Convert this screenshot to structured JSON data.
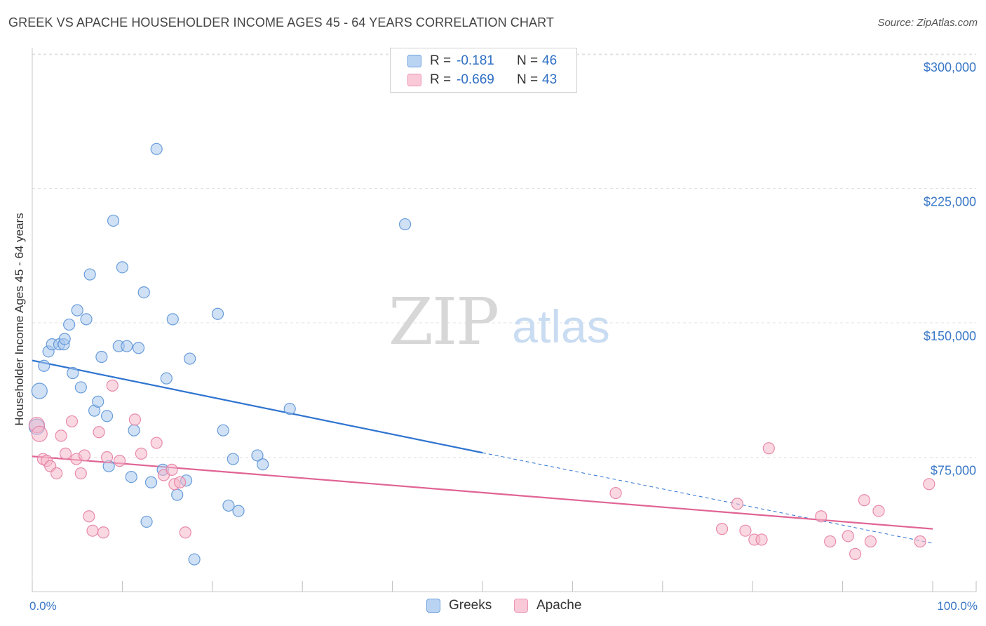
{
  "title": "GREEK VS APACHE HOUSEHOLDER INCOME AGES 45 - 64 YEARS CORRELATION CHART",
  "source": "Source: ZipAtlas.com",
  "watermark": {
    "zip": "ZIP",
    "atlas": "atlas"
  },
  "legend": {
    "greeks": {
      "r_label": "R =",
      "r_value": "-0.181",
      "n_label": "N =",
      "n_value": "46"
    },
    "apache": {
      "r_label": "R =",
      "r_value": "-0.669",
      "n_label": "N =",
      "n_value": "43"
    }
  },
  "bottom_legend": {
    "greeks": "Greeks",
    "apache": "Apache"
  },
  "colors": {
    "greeks_fill": "#a9c9ef",
    "greeks_stroke": "#5b93d6",
    "greeks_line": "#2f74d0",
    "apache_fill": "#f6b8cb",
    "apache_stroke": "#e57fa3",
    "apache_line": "#e06494",
    "tick_text": "#3a78c6",
    "grid": "#e2e2e2"
  },
  "chart_data": {
    "type": "scatter",
    "title": "GREEK VS APACHE HOUSEHOLDER INCOME AGES 45 - 64 YEARS CORRELATION CHART",
    "xlabel": "",
    "ylabel": "Householder Income Ages 45 - 64 years",
    "xlim": [
      0,
      100
    ],
    "ylim": [
      0,
      300000
    ],
    "x_tick_labels": [
      "0.0%",
      "100.0%"
    ],
    "y_ticks": [
      75000,
      150000,
      225000,
      300000
    ],
    "y_tick_labels": [
      "$75,000",
      "$150,000",
      "$225,000",
      "$300,000"
    ],
    "grid": true,
    "series": [
      {
        "name": "Greeks",
        "points": [
          [
            0.8,
            112000
          ],
          [
            0.5,
            92000
          ],
          [
            1.3,
            126000
          ],
          [
            1.8,
            134000
          ],
          [
            2.2,
            138000
          ],
          [
            3.0,
            138000
          ],
          [
            3.5,
            138000
          ],
          [
            3.6,
            141000
          ],
          [
            4.1,
            149000
          ],
          [
            4.5,
            122000
          ],
          [
            5.0,
            157000
          ],
          [
            5.4,
            114000
          ],
          [
            6.0,
            152000
          ],
          [
            6.4,
            177000
          ],
          [
            6.9,
            101000
          ],
          [
            7.3,
            106000
          ],
          [
            7.7,
            131000
          ],
          [
            8.3,
            98000
          ],
          [
            8.5,
            70000
          ],
          [
            9.0,
            207000
          ],
          [
            9.6,
            137000
          ],
          [
            10.0,
            181000
          ],
          [
            10.5,
            137000
          ],
          [
            11.0,
            64000
          ],
          [
            11.3,
            90000
          ],
          [
            11.8,
            136000
          ],
          [
            12.4,
            167000
          ],
          [
            12.7,
            39000
          ],
          [
            13.2,
            61000
          ],
          [
            13.8,
            247000
          ],
          [
            14.5,
            68000
          ],
          [
            14.9,
            119000
          ],
          [
            15.6,
            152000
          ],
          [
            16.1,
            54000
          ],
          [
            17.1,
            62000
          ],
          [
            17.5,
            130000
          ],
          [
            18.0,
            18000
          ],
          [
            20.6,
            155000
          ],
          [
            21.2,
            90000
          ],
          [
            21.8,
            48000
          ],
          [
            22.3,
            74000
          ],
          [
            22.9,
            45000
          ],
          [
            25.0,
            76000
          ],
          [
            25.6,
            71000
          ],
          [
            28.6,
            102000
          ],
          [
            41.4,
            205000
          ]
        ],
        "trend": {
          "x": [
            0,
            50
          ],
          "y": [
            129000,
            77500
          ],
          "dashed_extension_to": [
            100,
            27000
          ]
        }
      },
      {
        "name": "Apache",
        "points": [
          [
            0.5,
            93000
          ],
          [
            0.8,
            88000
          ],
          [
            1.2,
            74000
          ],
          [
            1.6,
            73000
          ],
          [
            2.0,
            70000
          ],
          [
            2.7,
            66000
          ],
          [
            3.2,
            87000
          ],
          [
            3.7,
            77000
          ],
          [
            4.4,
            95000
          ],
          [
            4.9,
            74000
          ],
          [
            5.4,
            66000
          ],
          [
            5.8,
            76000
          ],
          [
            6.3,
            42000
          ],
          [
            6.7,
            34000
          ],
          [
            7.4,
            89000
          ],
          [
            7.9,
            33000
          ],
          [
            8.3,
            75000
          ],
          [
            8.9,
            115000
          ],
          [
            9.7,
            73000
          ],
          [
            11.4,
            96000
          ],
          [
            12.1,
            77000
          ],
          [
            13.8,
            83000
          ],
          [
            14.6,
            65000
          ],
          [
            15.5,
            68000
          ],
          [
            15.8,
            60000
          ],
          [
            16.4,
            61000
          ],
          [
            17.0,
            33000
          ],
          [
            64.8,
            55000
          ],
          [
            76.6,
            35000
          ],
          [
            78.3,
            49000
          ],
          [
            79.2,
            34000
          ],
          [
            80.2,
            29000
          ],
          [
            81.0,
            29000
          ],
          [
            81.8,
            80000
          ],
          [
            87.6,
            42000
          ],
          [
            88.6,
            28000
          ],
          [
            90.6,
            31000
          ],
          [
            91.4,
            21000
          ],
          [
            92.4,
            51000
          ],
          [
            93.1,
            28000
          ],
          [
            94.0,
            45000
          ],
          [
            98.6,
            28000
          ],
          [
            99.6,
            60000
          ]
        ],
        "trend": {
          "x": [
            0,
            100
          ],
          "y": [
            75500,
            35000
          ]
        }
      }
    ]
  }
}
